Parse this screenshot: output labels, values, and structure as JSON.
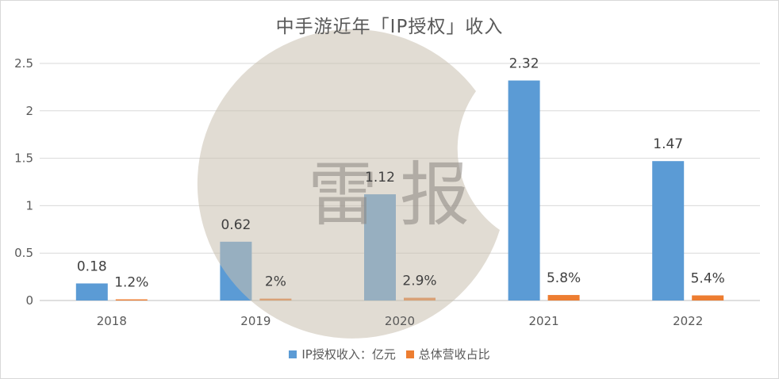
{
  "chart_data": {
    "type": "bar",
    "title": "中手游近年「IP授权」收入",
    "categories": [
      "2018",
      "2019",
      "2020",
      "2021",
      "2022"
    ],
    "series": [
      {
        "name": "IP授权收入：亿元",
        "color": "#5b9bd5",
        "values": [
          0.18,
          0.62,
          1.12,
          2.32,
          1.47
        ],
        "labels": [
          "0.18",
          "0.62",
          "1.12",
          "2.32",
          "1.47"
        ]
      },
      {
        "name": "总体营收占比",
        "color": "#ed7d31",
        "values": [
          0.012,
          0.02,
          0.029,
          0.058,
          0.054
        ],
        "labels": [
          "1.2%",
          "2%",
          "2.9%",
          "5.8%",
          "5.4%"
        ]
      }
    ],
    "ylim": [
      0,
      2.5
    ],
    "yticks": [
      "0",
      "0.5",
      "1",
      "1.5",
      "2",
      "2.5"
    ],
    "xlabel": "",
    "ylabel": "",
    "grid": true,
    "legend_position": "bottom"
  },
  "watermark": {
    "text": "雷 报",
    "icon": "moon-logo-watermark"
  }
}
